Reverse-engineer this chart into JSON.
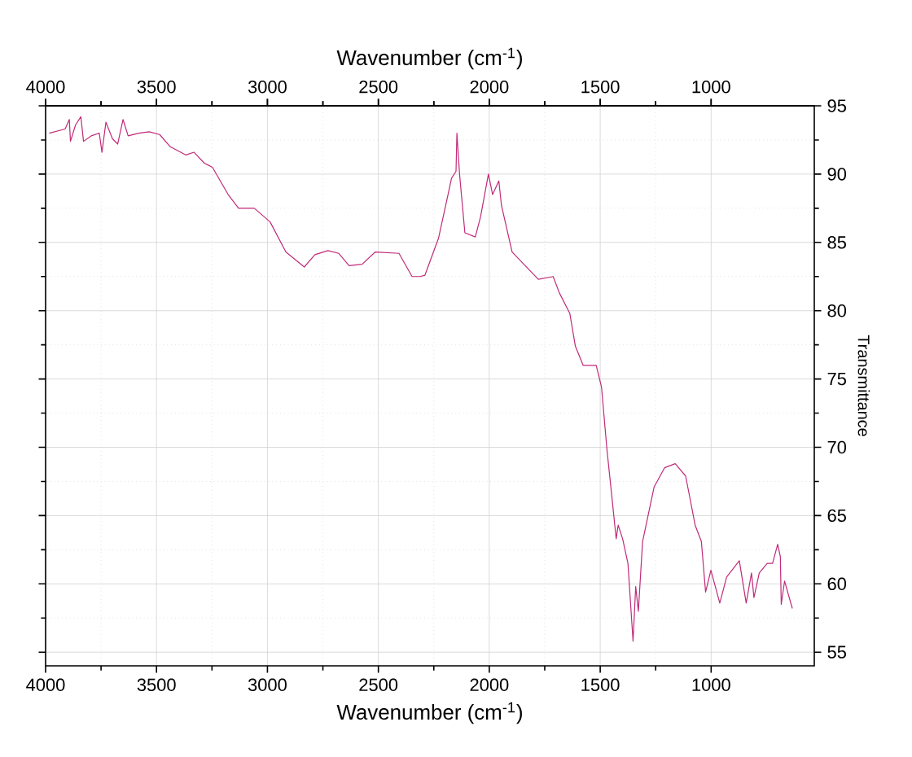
{
  "chart_data": {
    "type": "line",
    "xlabel": "Wavenumber (cm$^{-1}$)",
    "x2label": "Wavenumber (cm$^{-1}$)",
    "ylabel": "Transmittance",
    "xlim": [
      4000,
      535
    ],
    "x2lim": [
      4000,
      535
    ],
    "ylim": [
      54,
      95
    ],
    "xticks": [
      4000,
      3500,
      3000,
      2500,
      2000,
      1500,
      1000
    ],
    "x2ticks": [
      4000,
      3500,
      3000,
      2500,
      2000,
      1500,
      1000
    ],
    "yticks": [
      55,
      60,
      65,
      70,
      75,
      80,
      85,
      90,
      95
    ],
    "grid": true,
    "marker": "none",
    "line_style": "solid",
    "series": [
      {
        "color": "#c02a78",
        "x": [
          3984,
          3912,
          3893,
          3888,
          3865,
          3841,
          3829,
          3794,
          3758,
          3746,
          3728,
          3699,
          3675,
          3651,
          3628,
          3580,
          3533,
          3486,
          3438,
          3367,
          3331,
          3284,
          3248,
          3177,
          3130,
          3059,
          2988,
          2917,
          2834,
          2786,
          2727,
          2679,
          2632,
          2573,
          2514,
          2407,
          2348,
          2312,
          2290,
          2229,
          2194,
          2170,
          2150,
          2146,
          2134,
          2110,
          2063,
          2039,
          2004,
          1985,
          1957,
          1945,
          1897,
          1779,
          1712,
          1684,
          1637,
          1612,
          1577,
          1518,
          1494,
          1470,
          1447,
          1428,
          1419,
          1399,
          1375,
          1352,
          1340,
          1328,
          1309,
          1257,
          1210,
          1162,
          1115,
          1072,
          1044,
          1025,
          1001,
          961,
          930,
          873,
          842,
          818,
          807,
          783,
          747,
          723,
          700,
          688,
          684,
          669,
          634
        ],
        "values": [
          93.0,
          93.3,
          94.0,
          92.4,
          93.6,
          94.2,
          92.4,
          92.8,
          93.0,
          91.6,
          93.8,
          92.6,
          92.2,
          94.0,
          92.8,
          93.0,
          93.1,
          92.9,
          92.0,
          91.4,
          91.6,
          90.8,
          90.5,
          88.5,
          87.5,
          87.5,
          86.5,
          84.3,
          83.2,
          84.1,
          84.4,
          84.2,
          83.3,
          83.4,
          84.3,
          84.2,
          82.5,
          82.5,
          82.6,
          85.3,
          87.9,
          89.7,
          90.2,
          93.0,
          90.0,
          85.7,
          85.4,
          86.9,
          90.0,
          88.5,
          89.5,
          87.7,
          84.3,
          82.3,
          82.5,
          81.3,
          79.8,
          77.4,
          76.0,
          76.0,
          74.4,
          69.9,
          66.3,
          63.3,
          64.3,
          63.3,
          61.5,
          55.8,
          59.8,
          58.0,
          63.1,
          67.1,
          68.5,
          68.8,
          67.9,
          64.3,
          63.1,
          59.4,
          61.0,
          58.6,
          60.5,
          61.7,
          58.6,
          60.8,
          59.0,
          60.8,
          61.5,
          61.5,
          62.9,
          62.0,
          58.5,
          60.2,
          58.2
        ]
      }
    ]
  }
}
